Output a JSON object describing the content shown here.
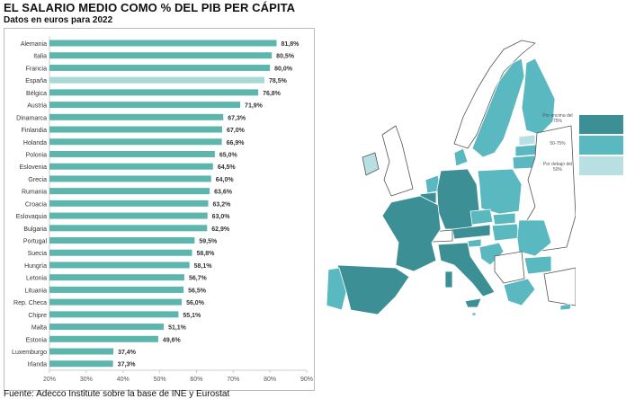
{
  "chart_data": {
    "type": "bar",
    "orientation": "horizontal",
    "title": "EL SALARIO MEDIO COMO % DEL PIB PER CÁPITA",
    "subtitle": "Datos en euros para 2022",
    "categories": [
      "Alemania",
      "Italia",
      "Francia",
      "España",
      "Bélgica",
      "Austria",
      "Dinamarca",
      "Finlandia",
      "Holanda",
      "Polonia",
      "Eslovenia",
      "Grecia",
      "Rumania",
      "Croacia",
      "Eslovaquia",
      "Bulgaria",
      "Portugal",
      "Suecia",
      "Hungría",
      "Letonia",
      "Lituania",
      "Rep. Checa",
      "Chipre",
      "Malta",
      "Estonia",
      "Luxemburgo",
      "Irlanda"
    ],
    "values": [
      81.8,
      80.5,
      80.0,
      78.5,
      76.8,
      71.9,
      67.3,
      67.0,
      66.9,
      65.0,
      64.5,
      64.0,
      63.6,
      63.2,
      63.0,
      62.9,
      59.5,
      58.8,
      58.1,
      56.7,
      56.5,
      56.0,
      55.1,
      51.1,
      49.6,
      37.4,
      37.3
    ],
    "value_labels": [
      "81,8%",
      "80,5%",
      "80,0%",
      "78,5%",
      "76,8%",
      "71,9%",
      "67,3%",
      "67,0%",
      "66,9%",
      "65,0%",
      "64,5%",
      "64,0%",
      "63,6%",
      "63,2%",
      "63,0%",
      "62,9%",
      "59,5%",
      "58,8%",
      "58,1%",
      "56,7%",
      "56,5%",
      "56,0%",
      "55,1%",
      "51,1%",
      "49,6%",
      "37,4%",
      "37,3%"
    ],
    "highlight": "España",
    "xlim": [
      20,
      90
    ],
    "xticks": [
      "20%",
      "30%",
      "40%",
      "50%",
      "60%",
      "70%",
      "80%",
      "90%"
    ],
    "xtick_values": [
      20,
      30,
      40,
      50,
      60,
      70,
      80,
      90
    ],
    "colors": {
      "bar": "#5db6ad",
      "highlight": "#a8dad5"
    }
  },
  "source": "Fuente: Adecco Institute sobre la base de INE y Eurostat",
  "map_legend": [
    {
      "label": "Por encima del 75%",
      "color": "#3b8f95"
    },
    {
      "label": "50-75%",
      "color": "#5ab8c0"
    },
    {
      "label": "Por debajo del 50%",
      "color": "#b8e0e3"
    }
  ]
}
